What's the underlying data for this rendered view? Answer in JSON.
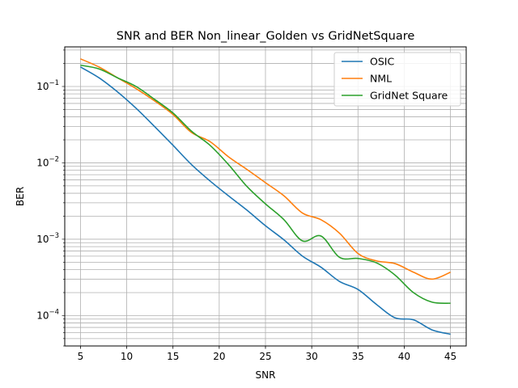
{
  "chart_data": {
    "type": "line",
    "title": "SNR and BER Non_linear_Golden vs GridNetSquare",
    "xlabel": "SNR",
    "ylabel": "BER",
    "yscale": "log",
    "xlim": [
      3.3,
      46.7
    ],
    "ylim": [
      4e-05,
      0.33
    ],
    "xticks": [
      5,
      10,
      15,
      20,
      25,
      30,
      35,
      40,
      45
    ],
    "yticks": [
      {
        "value": 0.0001,
        "base": "10",
        "exp": "−4"
      },
      {
        "value": 0.001,
        "base": "10",
        "exp": "−3"
      },
      {
        "value": 0.01,
        "base": "10",
        "exp": "−2"
      },
      {
        "value": 0.1,
        "base": "10",
        "exp": "−1"
      }
    ],
    "grid": true,
    "legend_position": "top-right",
    "x": [
      5,
      7,
      9,
      11,
      13,
      15,
      17,
      19,
      21,
      23,
      25,
      27,
      29,
      31,
      33,
      35,
      37,
      39,
      41,
      43,
      45
    ],
    "series": [
      {
        "name": "OSIC",
        "color": "#1f77b4",
        "values": [
          0.18,
          0.13,
          0.085,
          0.052,
          0.03,
          0.017,
          0.0095,
          0.0058,
          0.0037,
          0.0024,
          0.0015,
          0.00098,
          0.0006,
          0.00043,
          0.00028,
          0.00022,
          0.00014,
          9.35e-05,
          8.8e-05,
          6.5e-05,
          5.7e-05
        ]
      },
      {
        "name": "NML",
        "color": "#ff7f0e",
        "values": [
          0.23,
          0.18,
          0.13,
          0.094,
          0.065,
          0.043,
          0.025,
          0.019,
          0.012,
          0.0082,
          0.0055,
          0.0037,
          0.0022,
          0.0018,
          0.0012,
          0.00065,
          0.00052,
          0.00048,
          0.00037,
          0.0003,
          0.00037
        ]
      },
      {
        "name": "GridNet Square",
        "color": "#2ca02c",
        "values": [
          0.19,
          0.17,
          0.13,
          0.1,
          0.068,
          0.045,
          0.026,
          0.017,
          0.0095,
          0.0049,
          0.0029,
          0.0018,
          0.00095,
          0.0011,
          0.00058,
          0.00056,
          0.00049,
          0.00034,
          0.0002,
          0.00015,
          0.000145
        ]
      }
    ]
  }
}
